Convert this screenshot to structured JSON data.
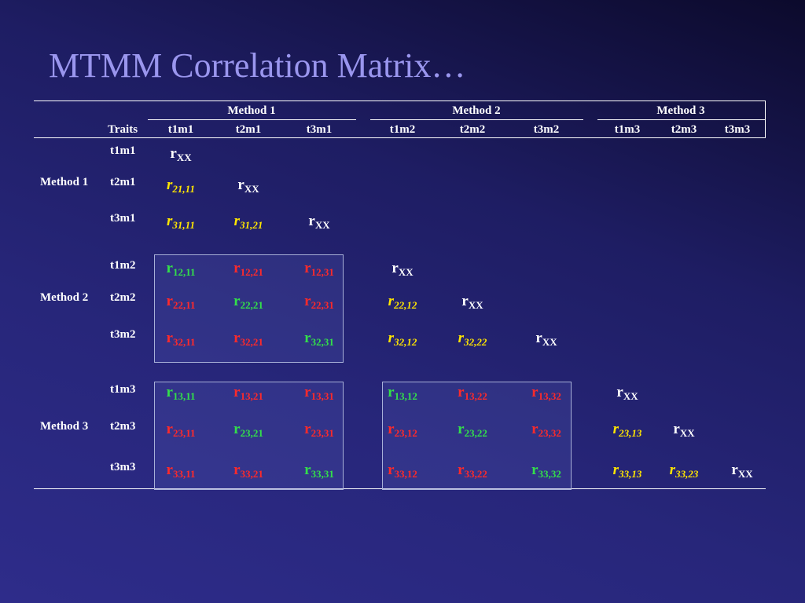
{
  "slide": {
    "title": "MTMM Correlation Matrix…"
  },
  "colors": {
    "background": "#2a2880",
    "title": "#9a96ee",
    "reliability": "#ffffff",
    "heterotrait_monomethod": "#ffe600",
    "validity": "#33e04a",
    "heterotrait_heteromethod": "#ff2a2a"
  },
  "table": {
    "method_headers": [
      "Method 1",
      "Method 2",
      "Method 3"
    ],
    "traits_label": "Traits",
    "column_headers": [
      "t1m1",
      "t2m1",
      "t3m1",
      "t1m2",
      "t2m2",
      "t3m2",
      "t1m3",
      "t2m3",
      "t3m3"
    ],
    "row_method_labels": [
      "Method 1",
      "Method 2",
      "Method 3"
    ],
    "row_trait_labels": [
      "t1m1",
      "t2m1",
      "t3m1",
      "t1m2",
      "t2m2",
      "t3m2",
      "t1m3",
      "t2m3",
      "t3m3"
    ],
    "rows": [
      [
        {
          "t": "r",
          "s": "XX",
          "k": "rel"
        }
      ],
      [
        {
          "t": "r",
          "s": "21,11",
          "k": "ht"
        },
        {
          "t": "r",
          "s": "XX",
          "k": "rel"
        }
      ],
      [
        {
          "t": "r",
          "s": "31,11",
          "k": "ht"
        },
        {
          "t": "r",
          "s": "31,21",
          "k": "ht"
        },
        {
          "t": "r",
          "s": "XX",
          "k": "rel"
        }
      ],
      [
        {
          "t": "r",
          "s": "12,11",
          "k": "val"
        },
        {
          "t": "r",
          "s": "12,21",
          "k": "hh"
        },
        {
          "t": "r",
          "s": "12,31",
          "k": "hh"
        },
        {
          "t": "r",
          "s": "XX",
          "k": "rel"
        }
      ],
      [
        {
          "t": "r",
          "s": "22,11",
          "k": "hh"
        },
        {
          "t": "r",
          "s": "22,21",
          "k": "val"
        },
        {
          "t": "r",
          "s": "22,31",
          "k": "hh"
        },
        {
          "t": "r",
          "s": "22,12",
          "k": "ht"
        },
        {
          "t": "r",
          "s": "XX",
          "k": "rel"
        }
      ],
      [
        {
          "t": "r",
          "s": "32,11",
          "k": "hh"
        },
        {
          "t": "r",
          "s": "32,21",
          "k": "hh"
        },
        {
          "t": "r",
          "s": "32,31",
          "k": "val"
        },
        {
          "t": "r",
          "s": "32,12",
          "k": "ht"
        },
        {
          "t": "r",
          "s": "32,22",
          "k": "ht"
        },
        {
          "t": "r",
          "s": "XX",
          "k": "rel"
        }
      ],
      [
        {
          "t": "r",
          "s": "13,11",
          "k": "val"
        },
        {
          "t": "r",
          "s": "13,21",
          "k": "hh"
        },
        {
          "t": "r",
          "s": "13,31",
          "k": "hh"
        },
        {
          "t": "r",
          "s": "13,12",
          "k": "val"
        },
        {
          "t": "r",
          "s": "13,22",
          "k": "hh"
        },
        {
          "t": "r",
          "s": "13,32",
          "k": "hh"
        },
        {
          "t": "r",
          "s": "XX",
          "k": "rel"
        }
      ],
      [
        {
          "t": "r",
          "s": "23,11",
          "k": "hh"
        },
        {
          "t": "r",
          "s": "23,21",
          "k": "val"
        },
        {
          "t": "r",
          "s": "23,31",
          "k": "hh"
        },
        {
          "t": "r",
          "s": "23,12",
          "k": "hh"
        },
        {
          "t": "r",
          "s": "23,22",
          "k": "val"
        },
        {
          "t": "r",
          "s": "23,32",
          "k": "hh"
        },
        {
          "t": "r",
          "s": "23,13",
          "k": "ht"
        },
        {
          "t": "r",
          "s": "XX",
          "k": "rel"
        }
      ],
      [
        {
          "t": "r",
          "s": "33,11",
          "k": "hh"
        },
        {
          "t": "r",
          "s": "33,21",
          "k": "hh"
        },
        {
          "t": "r",
          "s": "33,31",
          "k": "val"
        },
        {
          "t": "r",
          "s": "33,12",
          "k": "hh"
        },
        {
          "t": "r",
          "s": "33,22",
          "k": "hh"
        },
        {
          "t": "r",
          "s": "33,32",
          "k": "val"
        },
        {
          "t": "r",
          "s": "33,13",
          "k": "ht"
        },
        {
          "t": "r",
          "s": "33,23",
          "k": "ht"
        },
        {
          "t": "r",
          "s": "XX",
          "k": "rel"
        }
      ]
    ]
  }
}
